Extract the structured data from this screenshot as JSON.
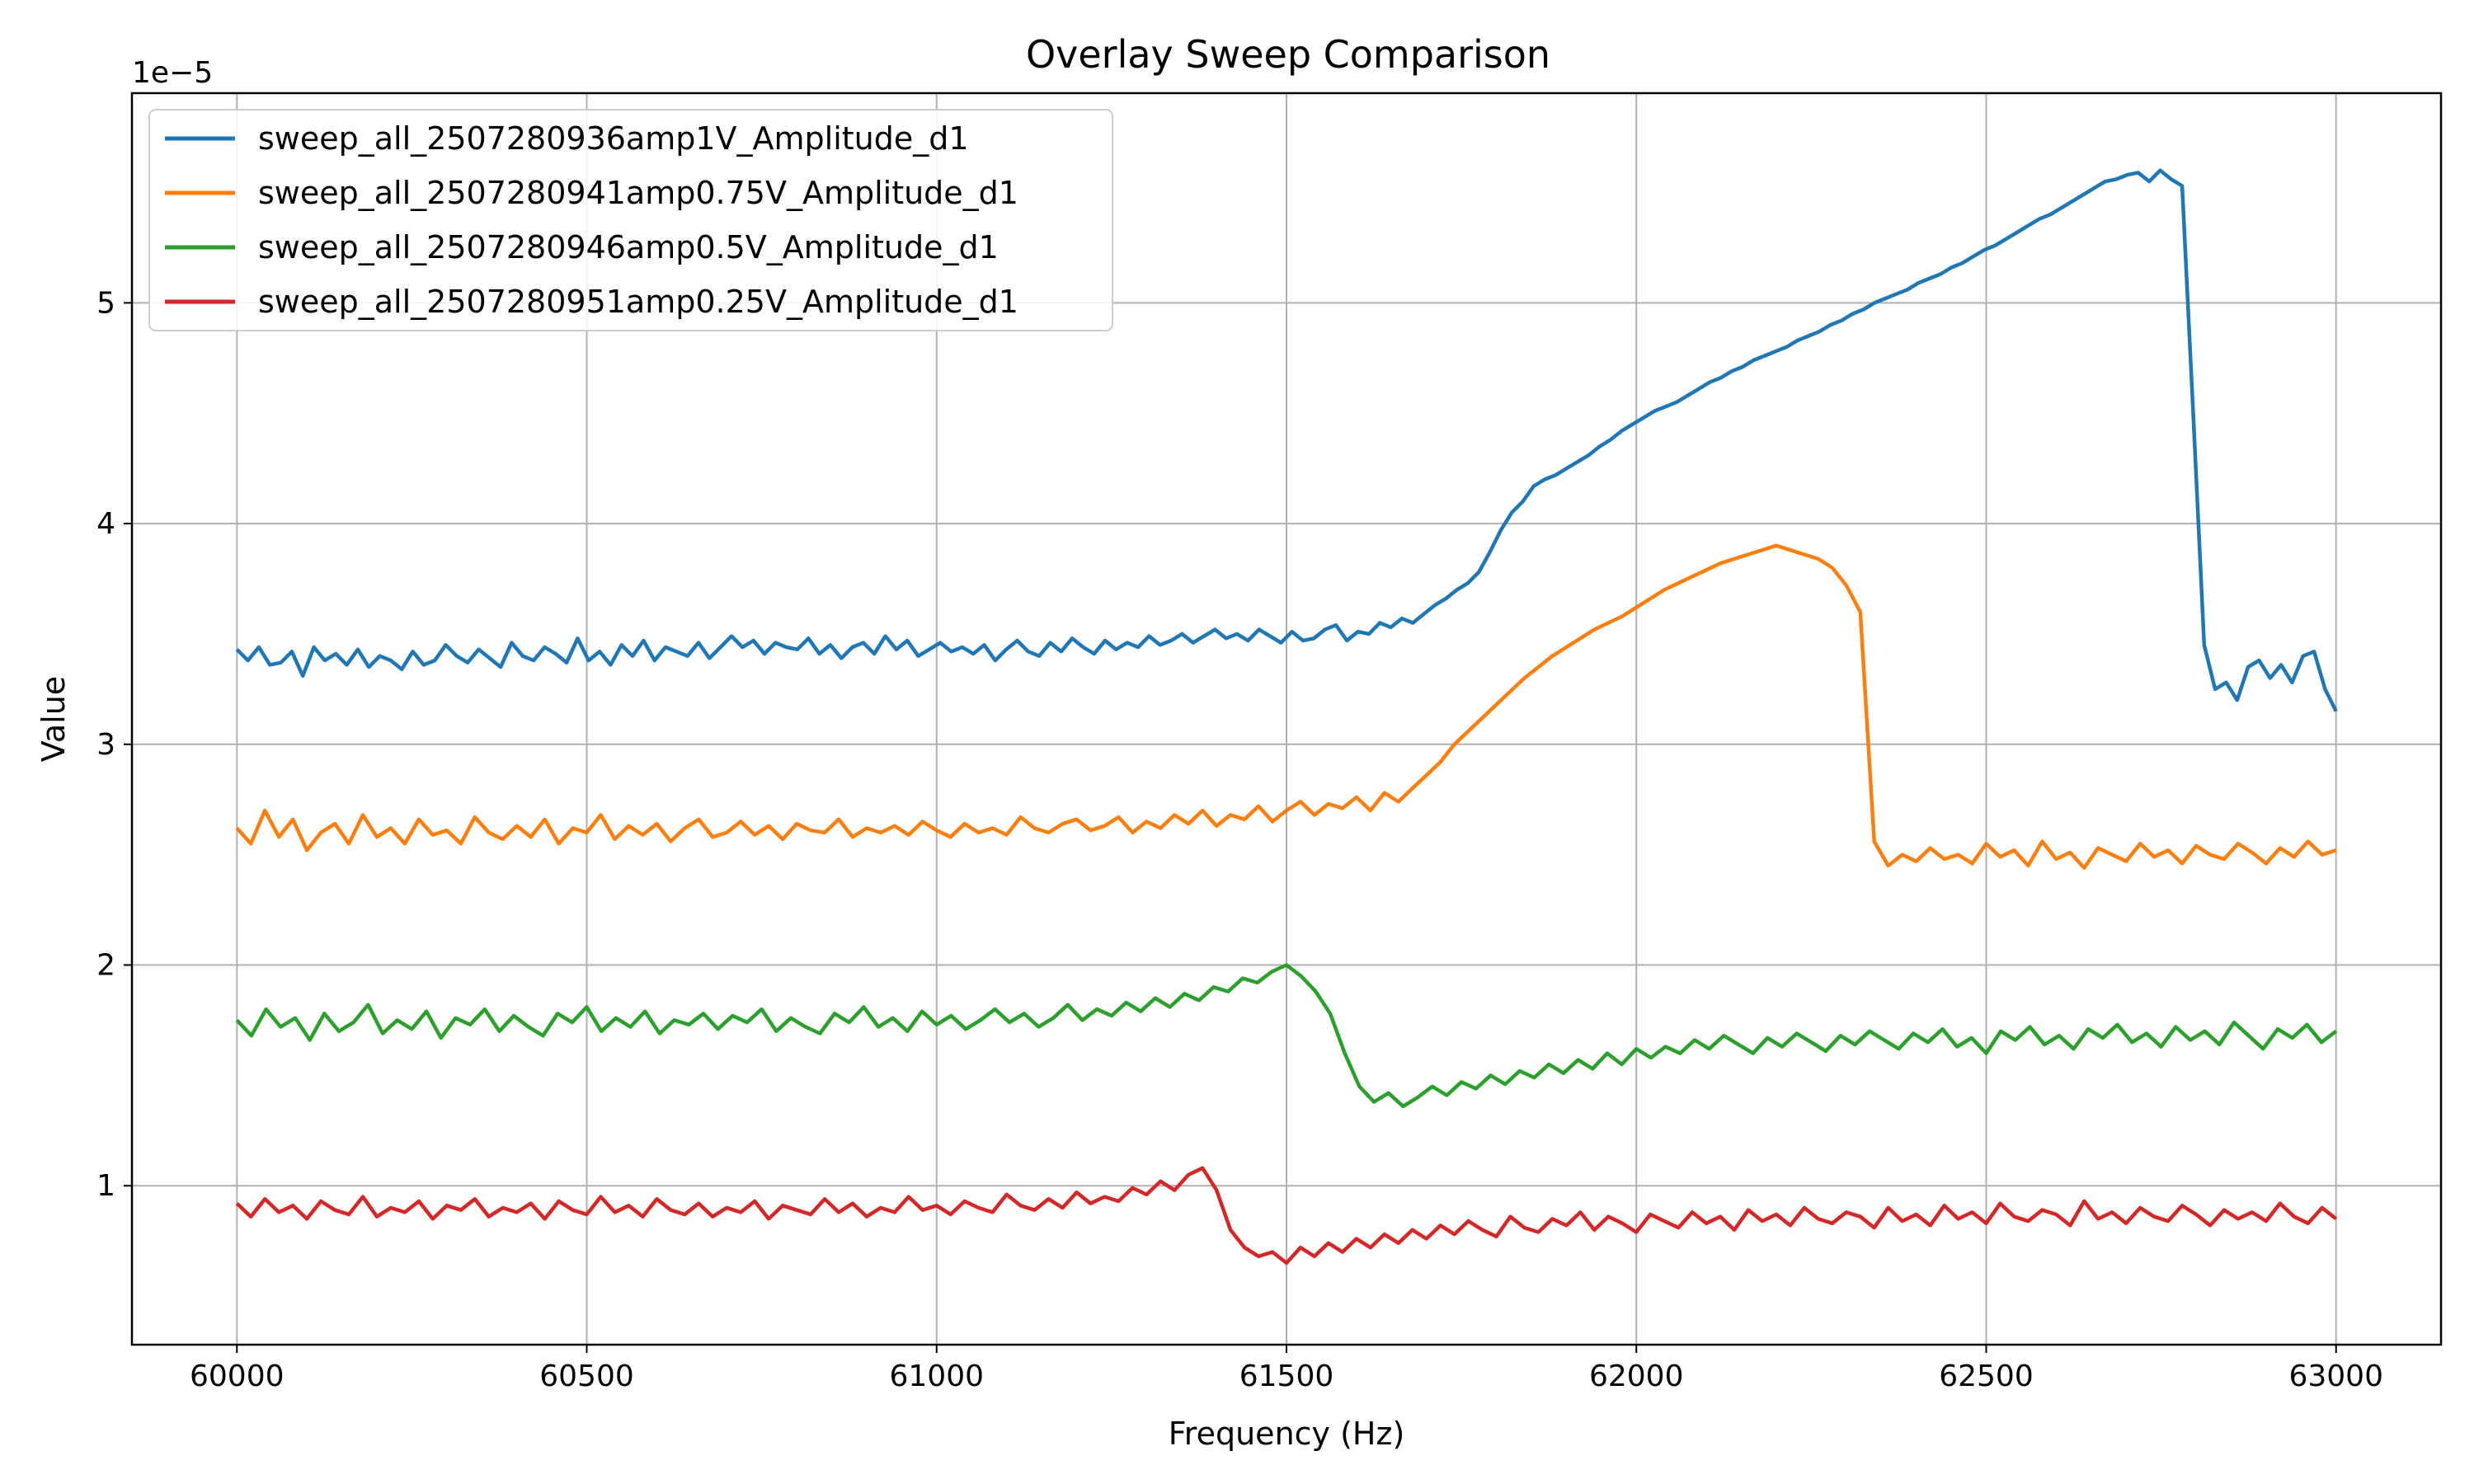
{
  "chart_data": {
    "type": "line",
    "title": "Overlay Sweep Comparison",
    "xlabel": "Frequency (Hz)",
    "ylabel": "Value",
    "y_offset_label": "1e−5",
    "xlim": [
      59850,
      63150
    ],
    "ylim": [
      0.28,
      5.95
    ],
    "xticks": [
      60000,
      60500,
      61000,
      61500,
      62000,
      62500,
      63000
    ],
    "xtick_labels": [
      "60000",
      "60500",
      "61000",
      "61500",
      "62000",
      "62500",
      "63000"
    ],
    "yticks": [
      1,
      2,
      3,
      4,
      5
    ],
    "ytick_labels": [
      "1",
      "2",
      "3",
      "4",
      "5"
    ],
    "grid": true,
    "legend_position": "top-left",
    "x_start": 60000,
    "x_end": 63000,
    "x_step": 20,
    "series": [
      {
        "name": "sweep_all_2507280936amp1V_Amplitude_d1",
        "color": "#1f77b4",
        "values": [
          3.43,
          3.38,
          3.44,
          3.36,
          3.37,
          3.42,
          3.31,
          3.44,
          3.38,
          3.41,
          3.36,
          3.43,
          3.35,
          3.4,
          3.38,
          3.34,
          3.42,
          3.36,
          3.38,
          3.45,
          3.4,
          3.37,
          3.43,
          3.39,
          3.35,
          3.46,
          3.4,
          3.38,
          3.44,
          3.41,
          3.37,
          3.48,
          3.38,
          3.42,
          3.36,
          3.45,
          3.4,
          3.47,
          3.38,
          3.44,
          3.42,
          3.4,
          3.46,
          3.39,
          3.44,
          3.49,
          3.44,
          3.47,
          3.41,
          3.46,
          3.44,
          3.43,
          3.48,
          3.41,
          3.45,
          3.39,
          3.44,
          3.46,
          3.41,
          3.49,
          3.43,
          3.47,
          3.4,
          3.43,
          3.46,
          3.42,
          3.44,
          3.41,
          3.45,
          3.38,
          3.43,
          3.47,
          3.42,
          3.4,
          3.46,
          3.42,
          3.48,
          3.44,
          3.41,
          3.47,
          3.43,
          3.46,
          3.44,
          3.49,
          3.45,
          3.47,
          3.5,
          3.46,
          3.49,
          3.52,
          3.48,
          3.5,
          3.47,
          3.52,
          3.49,
          3.46,
          3.51,
          3.47,
          3.48,
          3.52,
          3.54,
          3.47,
          3.51,
          3.5,
          3.55,
          3.53,
          3.57,
          3.55,
          3.59,
          3.63,
          3.66,
          3.7,
          3.73,
          3.78,
          3.87,
          3.97,
          4.05,
          4.1,
          4.17,
          4.2,
          4.22,
          4.25,
          4.28,
          4.31,
          4.35,
          4.38,
          4.42,
          4.45,
          4.48,
          4.51,
          4.53,
          4.55,
          4.58,
          4.61,
          4.64,
          4.66,
          4.69,
          4.71,
          4.74,
          4.76,
          4.78,
          4.8,
          4.83,
          4.85,
          4.87,
          4.9,
          4.92,
          4.95,
          4.97,
          5.0,
          5.02,
          5.04,
          5.06,
          5.09,
          5.11,
          5.13,
          5.16,
          5.18,
          5.21,
          5.24,
          5.26,
          5.29,
          5.32,
          5.35,
          5.38,
          5.4,
          5.43,
          5.46,
          5.49,
          5.52,
          5.55,
          5.56,
          5.58,
          5.59,
          5.55,
          5.6,
          5.56,
          5.53,
          4.5,
          3.45,
          3.25,
          3.28,
          3.2,
          3.35,
          3.38,
          3.3,
          3.36,
          3.28,
          3.4,
          3.42,
          3.25,
          3.15
        ]
      },
      {
        "name": "sweep_all_2507280941amp0.75V_Amplitude_d1",
        "color": "#ff7f0e",
        "values": [
          2.62,
          2.55,
          2.7,
          2.58,
          2.66,
          2.52,
          2.6,
          2.64,
          2.55,
          2.68,
          2.58,
          2.62,
          2.55,
          2.66,
          2.59,
          2.61,
          2.55,
          2.67,
          2.6,
          2.57,
          2.63,
          2.58,
          2.66,
          2.55,
          2.62,
          2.6,
          2.68,
          2.57,
          2.63,
          2.59,
          2.64,
          2.56,
          2.62,
          2.66,
          2.58,
          2.6,
          2.65,
          2.59,
          2.63,
          2.57,
          2.64,
          2.61,
          2.6,
          2.66,
          2.58,
          2.62,
          2.6,
          2.63,
          2.59,
          2.65,
          2.61,
          2.58,
          2.64,
          2.6,
          2.62,
          2.59,
          2.67,
          2.62,
          2.6,
          2.64,
          2.66,
          2.61,
          2.63,
          2.67,
          2.6,
          2.65,
          2.62,
          2.68,
          2.64,
          2.7,
          2.63,
          2.68,
          2.66,
          2.72,
          2.65,
          2.7,
          2.74,
          2.68,
          2.73,
          2.71,
          2.76,
          2.7,
          2.78,
          2.74,
          2.8,
          2.86,
          2.92,
          3.0,
          3.06,
          3.12,
          3.18,
          3.24,
          3.3,
          3.35,
          3.4,
          3.44,
          3.48,
          3.52,
          3.55,
          3.58,
          3.62,
          3.66,
          3.7,
          3.73,
          3.76,
          3.79,
          3.82,
          3.84,
          3.86,
          3.88,
          3.9,
          3.88,
          3.86,
          3.84,
          3.8,
          3.72,
          3.6,
          2.56,
          2.45,
          2.5,
          2.47,
          2.53,
          2.48,
          2.5,
          2.46,
          2.55,
          2.49,
          2.52,
          2.45,
          2.56,
          2.48,
          2.51,
          2.44,
          2.53,
          2.5,
          2.47,
          2.55,
          2.49,
          2.52,
          2.46,
          2.54,
          2.5,
          2.48,
          2.55,
          2.51,
          2.46,
          2.53,
          2.49,
          2.56,
          2.5,
          2.52
        ]
      },
      {
        "name": "sweep_all_2507280946amp0.5V_Amplitude_d1",
        "color": "#2ca02c",
        "values": [
          1.75,
          1.68,
          1.8,
          1.72,
          1.76,
          1.66,
          1.78,
          1.7,
          1.74,
          1.82,
          1.69,
          1.75,
          1.71,
          1.79,
          1.67,
          1.76,
          1.73,
          1.8,
          1.7,
          1.77,
          1.72,
          1.68,
          1.78,
          1.74,
          1.81,
          1.7,
          1.76,
          1.72,
          1.79,
          1.69,
          1.75,
          1.73,
          1.78,
          1.71,
          1.77,
          1.74,
          1.8,
          1.7,
          1.76,
          1.72,
          1.69,
          1.78,
          1.74,
          1.81,
          1.72,
          1.76,
          1.7,
          1.79,
          1.73,
          1.77,
          1.71,
          1.75,
          1.8,
          1.74,
          1.78,
          1.72,
          1.76,
          1.82,
          1.75,
          1.8,
          1.77,
          1.83,
          1.79,
          1.85,
          1.81,
          1.87,
          1.84,
          1.9,
          1.88,
          1.94,
          1.92,
          1.97,
          2.0,
          1.95,
          1.88,
          1.78,
          1.6,
          1.45,
          1.38,
          1.42,
          1.36,
          1.4,
          1.45,
          1.41,
          1.47,
          1.44,
          1.5,
          1.46,
          1.52,
          1.49,
          1.55,
          1.51,
          1.57,
          1.53,
          1.6,
          1.55,
          1.62,
          1.58,
          1.63,
          1.6,
          1.66,
          1.62,
          1.68,
          1.64,
          1.6,
          1.67,
          1.63,
          1.69,
          1.65,
          1.61,
          1.68,
          1.64,
          1.7,
          1.66,
          1.62,
          1.69,
          1.65,
          1.71,
          1.63,
          1.67,
          1.6,
          1.7,
          1.66,
          1.72,
          1.64,
          1.68,
          1.62,
          1.71,
          1.67,
          1.73,
          1.65,
          1.69,
          1.63,
          1.72,
          1.66,
          1.7,
          1.64,
          1.74,
          1.68,
          1.62,
          1.71,
          1.67,
          1.73,
          1.65,
          1.7
        ]
      },
      {
        "name": "sweep_all_2507280951amp0.25V_Amplitude_d1",
        "color": "#d62728",
        "values": [
          0.92,
          0.86,
          0.94,
          0.88,
          0.91,
          0.85,
          0.93,
          0.89,
          0.87,
          0.95,
          0.86,
          0.9,
          0.88,
          0.93,
          0.85,
          0.91,
          0.89,
          0.94,
          0.86,
          0.9,
          0.88,
          0.92,
          0.85,
          0.93,
          0.89,
          0.87,
          0.95,
          0.88,
          0.91,
          0.86,
          0.94,
          0.89,
          0.87,
          0.92,
          0.86,
          0.9,
          0.88,
          0.93,
          0.85,
          0.91,
          0.89,
          0.87,
          0.94,
          0.88,
          0.92,
          0.86,
          0.9,
          0.88,
          0.95,
          0.89,
          0.91,
          0.87,
          0.93,
          0.9,
          0.88,
          0.96,
          0.91,
          0.89,
          0.94,
          0.9,
          0.97,
          0.92,
          0.95,
          0.93,
          0.99,
          0.96,
          1.02,
          0.98,
          1.05,
          1.08,
          0.98,
          0.8,
          0.72,
          0.68,
          0.7,
          0.65,
          0.72,
          0.68,
          0.74,
          0.7,
          0.76,
          0.72,
          0.78,
          0.74,
          0.8,
          0.76,
          0.82,
          0.78,
          0.84,
          0.8,
          0.77,
          0.86,
          0.81,
          0.79,
          0.85,
          0.82,
          0.88,
          0.8,
          0.86,
          0.83,
          0.79,
          0.87,
          0.84,
          0.81,
          0.88,
          0.83,
          0.86,
          0.8,
          0.89,
          0.84,
          0.87,
          0.82,
          0.9,
          0.85,
          0.83,
          0.88,
          0.86,
          0.81,
          0.9,
          0.84,
          0.87,
          0.82,
          0.91,
          0.85,
          0.88,
          0.83,
          0.92,
          0.86,
          0.84,
          0.89,
          0.87,
          0.82,
          0.93,
          0.85,
          0.88,
          0.83,
          0.9,
          0.86,
          0.84,
          0.91,
          0.87,
          0.82,
          0.89,
          0.85,
          0.88,
          0.84,
          0.92,
          0.86,
          0.83,
          0.9,
          0.85
        ]
      }
    ]
  }
}
